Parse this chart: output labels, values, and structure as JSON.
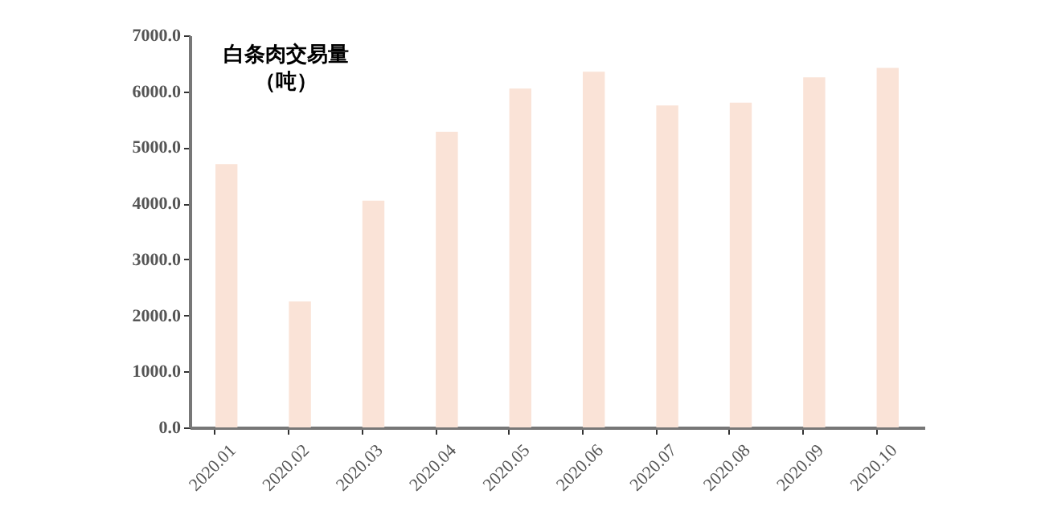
{
  "chart_data": {
    "type": "bar",
    "title": "白条肉交易量",
    "subtitle": "（吨）",
    "categories": [
      "2020.01",
      "2020.02",
      "2020.03",
      "2020.04",
      "2020.05",
      "2020.06",
      "2020.07",
      "2020.08",
      "2020.09",
      "2020.10"
    ],
    "values": [
      4700,
      2250,
      4050,
      5280,
      6050,
      6350,
      5750,
      5800,
      6250,
      6420
    ],
    "color": "#fae3d7",
    "ylim": [
      0,
      7000
    ],
    "yticks": [
      {
        "value": 0,
        "label": "0.0"
      },
      {
        "value": 1000,
        "label": "1000.0"
      },
      {
        "value": 2000,
        "label": "2000.0"
      },
      {
        "value": 3000,
        "label": "3000.0"
      },
      {
        "value": 4000,
        "label": "4000.0"
      },
      {
        "value": 5000,
        "label": "5000.0"
      },
      {
        "value": 6000,
        "label": "6000.0"
      },
      {
        "value": 7000,
        "label": "7000.0"
      }
    ],
    "grid": false
  }
}
